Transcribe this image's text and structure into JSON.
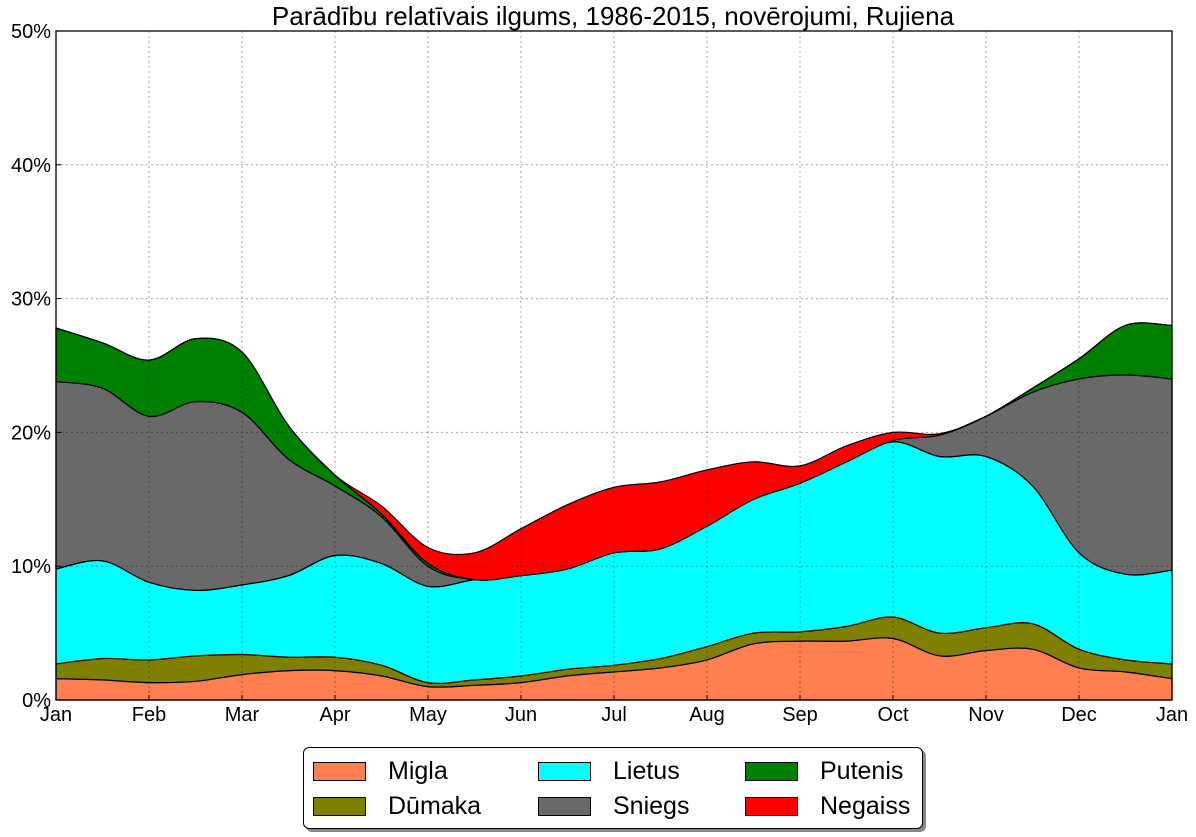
{
  "chart_data": {
    "type": "area",
    "stacked": true,
    "title": "Parādību relatīvais ilgums, 1986-2015, novērojumi, Rujiena",
    "xlabel": "",
    "ylabel": "",
    "x_unit": "months since Jan 1",
    "x": [
      0,
      0.5,
      1,
      1.5,
      2,
      2.5,
      3,
      3.5,
      4,
      4.5,
      5,
      5.5,
      6,
      6.5,
      7,
      7.5,
      8,
      8.5,
      9,
      9.5,
      10,
      10.5,
      11,
      11.5,
      12
    ],
    "xlim": [
      0,
      12
    ],
    "x_tick_values": [
      0,
      1,
      2,
      3,
      4,
      5,
      6,
      7,
      8,
      9,
      10,
      11,
      12
    ],
    "x_tick_labels": [
      "Jan",
      "Feb",
      "Mar",
      "Apr",
      "May",
      "Jun",
      "Jul",
      "Aug",
      "Sep",
      "Oct",
      "Nov",
      "Dec",
      "Jan"
    ],
    "ylim": [
      0,
      50
    ],
    "y_tick_values": [
      0,
      10,
      20,
      30,
      40,
      50
    ],
    "y_tick_labels": [
      "0%",
      "10%",
      "20%",
      "30%",
      "40%",
      "50%"
    ],
    "grid": true,
    "legend_position": "bottom-center",
    "series": [
      {
        "name": "Migla",
        "color": "#ff7f50",
        "values": [
          1.6,
          1.5,
          1.3,
          1.4,
          1.9,
          2.2,
          2.2,
          1.8,
          1.0,
          1.1,
          1.3,
          1.8,
          2.1,
          2.4,
          3.0,
          4.2,
          4.4,
          4.4,
          4.6,
          3.3,
          3.7,
          3.8,
          2.4,
          2.1,
          1.6
        ]
      },
      {
        "name": "Dūmaka",
        "color": "#808000",
        "values": [
          1.1,
          1.6,
          1.7,
          1.9,
          1.5,
          1.0,
          1.0,
          0.8,
          0.3,
          0.4,
          0.5,
          0.5,
          0.5,
          0.7,
          1.0,
          0.8,
          0.7,
          1.1,
          1.6,
          1.7,
          1.7,
          1.9,
          1.4,
          0.9,
          1.1
        ]
      },
      {
        "name": "Lietus",
        "color": "#00ffff",
        "values": [
          7.1,
          7.3,
          5.8,
          4.9,
          5.2,
          6.1,
          7.6,
          7.6,
          7.2,
          7.5,
          7.5,
          7.5,
          8.4,
          8.2,
          9.0,
          10.0,
          11.1,
          12.3,
          13.1,
          13.2,
          12.8,
          10.3,
          7.2,
          6.4,
          7.0
        ]
      },
      {
        "name": "Sniegs",
        "color": "#696969",
        "values": [
          14.0,
          12.9,
          12.4,
          14.1,
          12.9,
          8.7,
          5.2,
          3.5,
          1.5,
          0.0,
          0.0,
          0.0,
          0.0,
          0.0,
          0.0,
          0.0,
          0.0,
          0.0,
          0.1,
          1.6,
          3.0,
          7.0,
          13.0,
          14.9,
          14.3
        ]
      },
      {
        "name": "Putenis",
        "color": "#008000",
        "values": [
          4.0,
          3.4,
          4.2,
          4.7,
          4.5,
          2.5,
          0.8,
          0.2,
          0.2,
          0.0,
          0.0,
          0.0,
          0.0,
          0.0,
          0.0,
          0.0,
          0.0,
          0.0,
          0.0,
          0.0,
          0.0,
          0.3,
          1.5,
          3.7,
          4.0
        ]
      },
      {
        "name": "Negaiss",
        "color": "#ff0000",
        "values": [
          0.0,
          0.0,
          0.0,
          0.0,
          0.0,
          0.0,
          0.0,
          0.6,
          1.2,
          2.0,
          3.5,
          4.8,
          4.9,
          5.0,
          4.2,
          2.8,
          1.3,
          1.2,
          0.6,
          0.1,
          0.0,
          0.0,
          0.0,
          0.0,
          0.0
        ]
      }
    ]
  },
  "legend": {
    "items": [
      {
        "label": "Migla",
        "color": "#ff7f50"
      },
      {
        "label": "Dūmaka",
        "color": "#808000"
      },
      {
        "label": "Lietus",
        "color": "#00ffff"
      },
      {
        "label": "Sniegs",
        "color": "#696969"
      },
      {
        "label": "Putenis",
        "color": "#008000"
      },
      {
        "label": "Negaiss",
        "color": "#ff0000"
      }
    ]
  }
}
